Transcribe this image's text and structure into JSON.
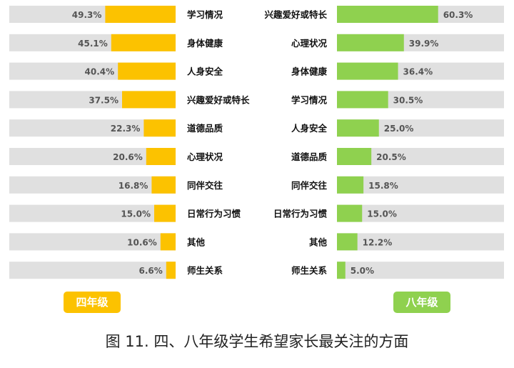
{
  "caption": "图 11. 四、八年级学生希望家长最关注的方面",
  "colors": {
    "grade4": "#fcc200",
    "grade8": "#8fd14f",
    "track": "#e0e0e0"
  },
  "chart_data": [
    {
      "type": "bar",
      "orientation": "horizontal",
      "group_label": "四年级",
      "bar_color": "#fcc200",
      "xlim": [
        0,
        100
      ],
      "categories": [
        "学习情况",
        "身体健康",
        "人身安全",
        "兴趣爱好或特长",
        "道德品质",
        "心理状况",
        "同伴交往",
        "日常行为习惯",
        "其他",
        "师生关系"
      ],
      "values": [
        49.3,
        45.1,
        40.4,
        37.5,
        22.3,
        20.6,
        16.8,
        15.0,
        10.6,
        6.6
      ],
      "value_labels": [
        "49.3%",
        "45.1%",
        "40.4%",
        "37.5%",
        "22.3%",
        "20.6%",
        "16.8%",
        "15.0%",
        "10.6%",
        "6.6%"
      ]
    },
    {
      "type": "bar",
      "orientation": "horizontal",
      "group_label": "八年级",
      "bar_color": "#8fd14f",
      "xlim": [
        0,
        100
      ],
      "categories": [
        "兴趣爱好或特长",
        "心理状况",
        "身体健康",
        "学习情况",
        "人身安全",
        "道德品质",
        "同伴交往",
        "日常行为习惯",
        "其他",
        "师生关系"
      ],
      "values": [
        60.3,
        39.9,
        36.4,
        30.5,
        25.0,
        20.5,
        15.8,
        15.0,
        12.2,
        5.0
      ],
      "value_labels": [
        "60.3%",
        "39.9%",
        "36.4%",
        "30.5%",
        "25.0%",
        "20.5%",
        "15.8%",
        "15.0%",
        "12.2%",
        "5.0%"
      ]
    }
  ]
}
